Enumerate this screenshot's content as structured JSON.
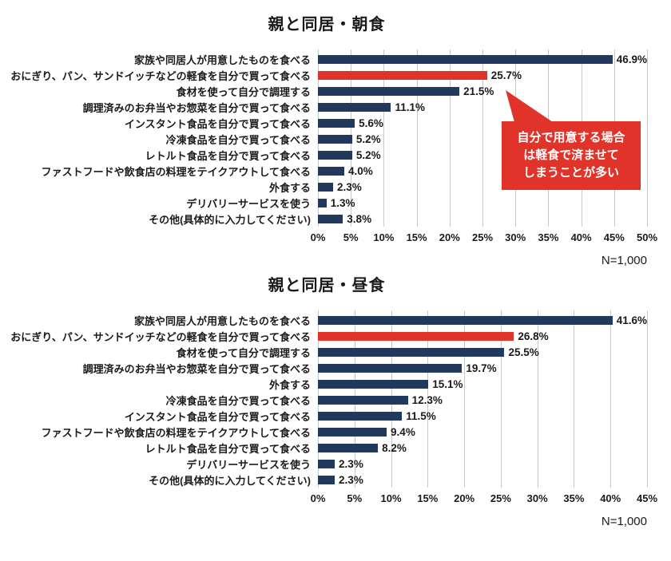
{
  "page": {
    "background": "#ffffff"
  },
  "colors": {
    "bar_default": "#21395a",
    "bar_highlight": "#e0342b",
    "gridline": "#c8c8c8",
    "text": "#1a1a1a",
    "callout_bg": "#e0342b",
    "callout_text": "#ffffff"
  },
  "chart_data": [
    {
      "type": "bar",
      "orientation": "horizontal",
      "title": "親と同居・朝食",
      "categories": [
        "家族や同居人が用意したものを食べる",
        "おにぎり、パン、サンドイッチなどの軽食を自分で買って食べる",
        "食材を使って自分で調理する",
        "調理済みのお弁当やお惣菜を自分で買って食べる",
        "インスタント食品を自分で買って食べる",
        "冷凍食品を自分で買って食べる",
        "レトルト食品を自分で買って食べる",
        "ファストフードや飲食店の料理をテイクアウトして食べる",
        "外食する",
        "デリバリーサービスを使う",
        "その他(具体的に入力してください)"
      ],
      "values": [
        46.9,
        25.7,
        21.5,
        11.1,
        5.6,
        5.2,
        5.2,
        4.0,
        2.3,
        1.3,
        3.8
      ],
      "value_labels": [
        "46.9%",
        "25.7%",
        "21.5%",
        "11.1%",
        "5.6%",
        "5.2%",
        "5.2%",
        "4.0%",
        "2.3%",
        "1.3%",
        "3.8%"
      ],
      "highlight_index": 1,
      "xlim": [
        0,
        50
      ],
      "ticks": [
        "0%",
        "5%",
        "10%",
        "15%",
        "20%",
        "25%",
        "30%",
        "35%",
        "40%",
        "45%",
        "50%"
      ],
      "grid": true,
      "n_label": "N=1,000",
      "callout": {
        "lines": [
          "自分で用意する場合",
          "は軽食で済ませて",
          "しまうことが多い"
        ]
      }
    },
    {
      "type": "bar",
      "orientation": "horizontal",
      "title": "親と同居・昼食",
      "categories": [
        "家族や同居人が用意したものを食べる",
        "おにぎり、パン、サンドイッチなどの軽食を自分で買って食べる",
        "食材を使って自分で調理する",
        "調理済みのお弁当やお惣菜を自分で買って食べる",
        "外食する",
        "冷凍食品を自分で買って食べる",
        "インスタント食品を自分で買って食べる",
        "ファストフードや飲食店の料理をテイクアウトして食べる",
        "レトルト食品を自分で買って食べる",
        "デリバリーサービスを使う",
        "その他(具体的に入力してください)"
      ],
      "values": [
        41.6,
        26.8,
        25.5,
        19.7,
        15.1,
        12.3,
        11.5,
        9.4,
        8.2,
        2.3,
        2.3
      ],
      "value_labels": [
        "41.6%",
        "26.8%",
        "25.5%",
        "19.7%",
        "15.1%",
        "12.3%",
        "11.5%",
        "9.4%",
        "8.2%",
        "2.3%",
        "2.3%"
      ],
      "highlight_index": 1,
      "xlim": [
        0,
        45
      ],
      "ticks": [
        "0%",
        "5%",
        "10%",
        "15%",
        "20%",
        "25%",
        "30%",
        "35%",
        "40%",
        "45%"
      ],
      "grid": true,
      "n_label": "N=1,000"
    }
  ]
}
